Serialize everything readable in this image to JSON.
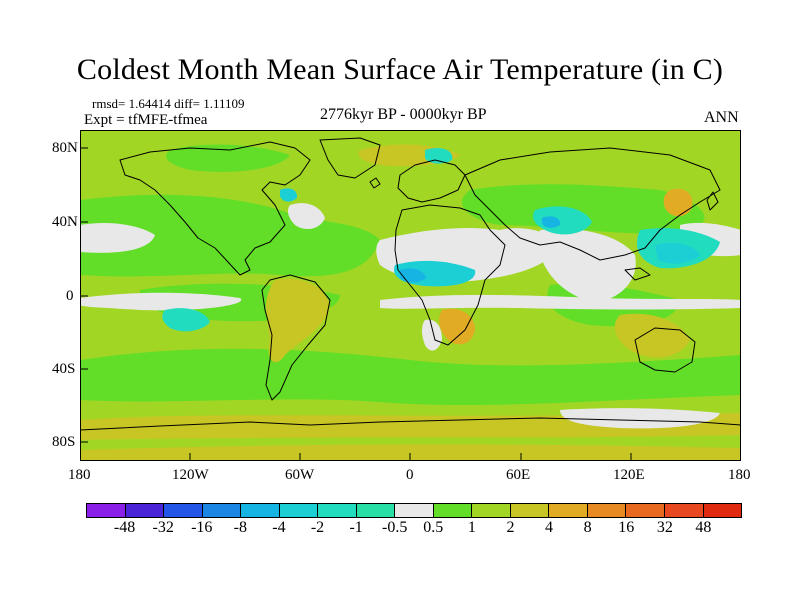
{
  "title": "Coldest Month Mean Surface Air Temperature (in C)",
  "stats": "rmsd= 1.64414 diff= 1.11109",
  "expt": "Expt = tfMFE-tfmea",
  "period": "2776kyr BP - 0000kyr BP",
  "season": "ANN",
  "lat_labels": [
    "80N",
    "40N",
    "0",
    "40S",
    "80S"
  ],
  "lon_labels": [
    "180",
    "120W",
    "60W",
    "0",
    "60E",
    "120E",
    "180"
  ],
  "colorbar": {
    "labels": [
      "-48",
      "-32",
      "-16",
      "-8",
      "-4",
      "-2",
      "-1",
      "-0.5",
      "0.5",
      "1",
      "2",
      "4",
      "8",
      "16",
      "32",
      "48"
    ],
    "colors": [
      "#8a1fe8",
      "#4a25d8",
      "#2356e6",
      "#1c86e4",
      "#15b4e2",
      "#1ccfd5",
      "#22dcc0",
      "#28e0a5",
      "#e8e8e8",
      "#62de28",
      "#a2d624",
      "#c8c624",
      "#e1ac23",
      "#e88a22",
      "#e86a20",
      "#e84820",
      "#e02a10"
    ]
  },
  "palette": {
    "neutral": "#e8e8e8",
    "c1": "#62de28",
    "c2": "#a2d624",
    "c4": "#c8c624",
    "c8": "#e1ac23",
    "m05": "#28e0a5",
    "m1": "#22dcc0",
    "m2": "#1ccfd5",
    "m4": "#15b4e2"
  }
}
